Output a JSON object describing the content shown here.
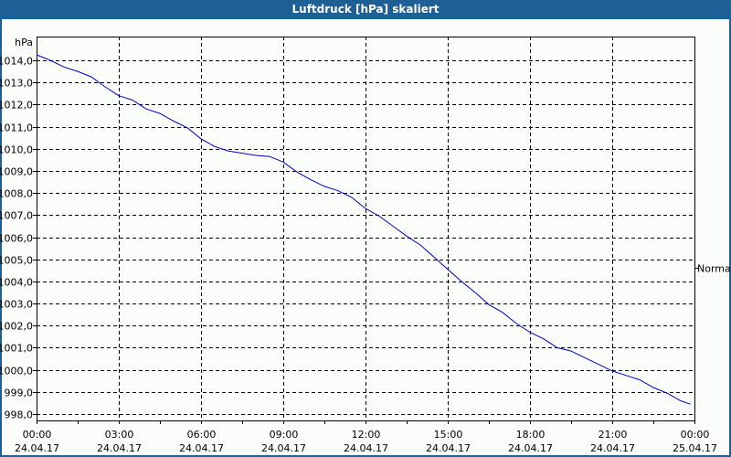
{
  "title": "Luftdruck [hPa] skaliert",
  "y_unit_label": "hPa",
  "right_marker_label": "Normal",
  "colors": {
    "titlebar": "#1e6096",
    "line": "#0000c8",
    "grid": "#000000",
    "background": "#fbfdfb"
  },
  "chart_data": {
    "type": "line",
    "title": "Luftdruck [hPa] skaliert",
    "xlabel": "",
    "ylabel": "hPa",
    "ylim": [
      997.8,
      1015.0
    ],
    "grid": true,
    "legend": "none",
    "y_ticks": [
      "998,0",
      "999,0",
      "1000,0",
      "1001,0",
      "1002,0",
      "1003,0",
      "1004,0",
      "1005,0",
      "1006,0",
      "1007,0",
      "1008,0",
      "1009,0",
      "1010,0",
      "1011,0",
      "1012,0",
      "1013,0",
      "1014,0"
    ],
    "x_ticks": [
      {
        "time": "00:00",
        "date": "24.04.17"
      },
      {
        "time": "03:00",
        "date": "24.04.17"
      },
      {
        "time": "06:00",
        "date": "24.04.17"
      },
      {
        "time": "09:00",
        "date": "24.04.17"
      },
      {
        "time": "12:00",
        "date": "24.04.17"
      },
      {
        "time": "15:00",
        "date": "24.04.17"
      },
      {
        "time": "18:00",
        "date": "24.04.17"
      },
      {
        "time": "21:00",
        "date": "24.04.17"
      },
      {
        "time": "00:00",
        "date": "25.04.17"
      }
    ],
    "annotations": [
      {
        "label": "Normal",
        "side": "right",
        "y_value": 1004.6
      }
    ],
    "series": [
      {
        "name": "Luftdruck",
        "x_hours": [
          0,
          0.5,
          1,
          1.5,
          2,
          2.5,
          3,
          3.5,
          4,
          4.5,
          5,
          5.5,
          6,
          6.5,
          7,
          7.5,
          8,
          8.5,
          9,
          9.5,
          10,
          10.5,
          11,
          11.5,
          12,
          12.5,
          13,
          13.5,
          14,
          14.5,
          15,
          15.5,
          16,
          16.5,
          17,
          17.5,
          18,
          18.5,
          19,
          19.5,
          20,
          20.5,
          21,
          21.5,
          22,
          22.5,
          23,
          23.5,
          23.85
        ],
        "values": [
          1014.25,
          1014.0,
          1013.7,
          1013.5,
          1013.25,
          1012.8,
          1012.4,
          1012.2,
          1011.8,
          1011.6,
          1011.25,
          1010.95,
          1010.45,
          1010.1,
          1009.9,
          1009.8,
          1009.7,
          1009.65,
          1009.4,
          1008.95,
          1008.6,
          1008.3,
          1008.1,
          1007.8,
          1007.3,
          1006.95,
          1006.5,
          1006.05,
          1005.65,
          1005.1,
          1004.55,
          1004.0,
          1003.5,
          1002.95,
          1002.6,
          1002.1,
          1001.7,
          1001.4,
          1001.0,
          1000.85,
          1000.55,
          1000.25,
          999.95,
          999.75,
          999.55,
          999.2,
          998.95,
          998.6,
          998.45
        ]
      }
    ]
  }
}
